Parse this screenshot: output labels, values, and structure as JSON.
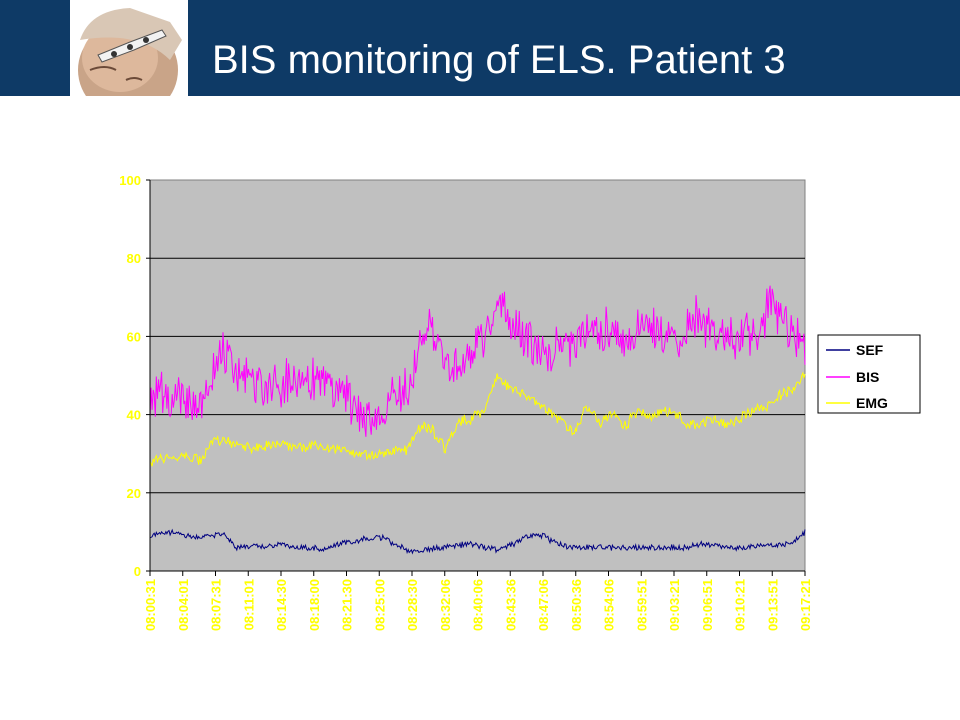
{
  "header": {
    "title": "BIS monitoring of ELS. Patient 3"
  },
  "colors": {
    "header_bg": "#0e3a66",
    "plot_bg": "#c0c0c0",
    "tick_labels": "#ffff00",
    "SEF": "#000080",
    "BIS": "#ff00ff",
    "EMG": "#ffff00"
  },
  "chart_data": {
    "type": "line",
    "title": "",
    "xlabel": "",
    "ylabel": "",
    "ylim": [
      0,
      100
    ],
    "y_ticks": [
      "0",
      "20",
      "40",
      "60",
      "80",
      "100"
    ],
    "grid": "horizontal",
    "legend_position": "right",
    "x_tick_labels": [
      "08:00:31",
      "08:04:01",
      "08:07:31",
      "08:11:01",
      "08:14:30",
      "08:18:00",
      "08:21:30",
      "08:25:00",
      "08:28:30",
      "08:32:06",
      "08:40:06",
      "08:43:36",
      "08:47:06",
      "08:50:36",
      "08:54:06",
      "08:59:51",
      "09:03:21",
      "09:06:51",
      "09:10:21",
      "09:13:51",
      "09:17:21"
    ],
    "series": [
      {
        "name": "SEF",
        "values": [
          9,
          10,
          9.5,
          8.5,
          9,
          9.5,
          6,
          6.5,
          6,
          7,
          6,
          6,
          5.5,
          7,
          7.5,
          8.5,
          8.5,
          6.5,
          5,
          5.5,
          6,
          6.5,
          7,
          6,
          5.5,
          7,
          9,
          9,
          7,
          6,
          6,
          6,
          6,
          6,
          6,
          6,
          6,
          6,
          7,
          6.5,
          6,
          6,
          6.5,
          6.5,
          7,
          10
        ]
      },
      {
        "name": "BIS",
        "values": [
          43,
          45,
          44,
          46,
          42,
          44,
          57,
          52,
          50,
          48,
          46,
          47,
          48,
          49,
          50,
          48,
          47,
          45,
          42,
          40,
          38,
          44,
          47,
          48,
          58,
          64,
          55,
          52,
          54,
          57,
          62,
          68,
          63,
          60,
          58,
          55,
          58,
          56,
          60,
          62,
          60,
          63,
          58,
          61,
          64,
          60,
          62,
          58,
          66,
          62,
          61,
          60,
          61,
          60,
          63,
          68,
          65,
          60,
          58
        ]
      },
      {
        "name": "EMG",
        "values": [
          28,
          29,
          28.5,
          29,
          28.5,
          34,
          33,
          32,
          31.5,
          32,
          32,
          32,
          31.5,
          32,
          31.5,
          31,
          30,
          29.5,
          30,
          30.5,
          31,
          37,
          36,
          31,
          38,
          39,
          41,
          50,
          47,
          45,
          43,
          41,
          38,
          35,
          42,
          38,
          40,
          37,
          41,
          39,
          41,
          40,
          37,
          38,
          39,
          37,
          39,
          41,
          42,
          45,
          46,
          50
        ]
      }
    ]
  }
}
